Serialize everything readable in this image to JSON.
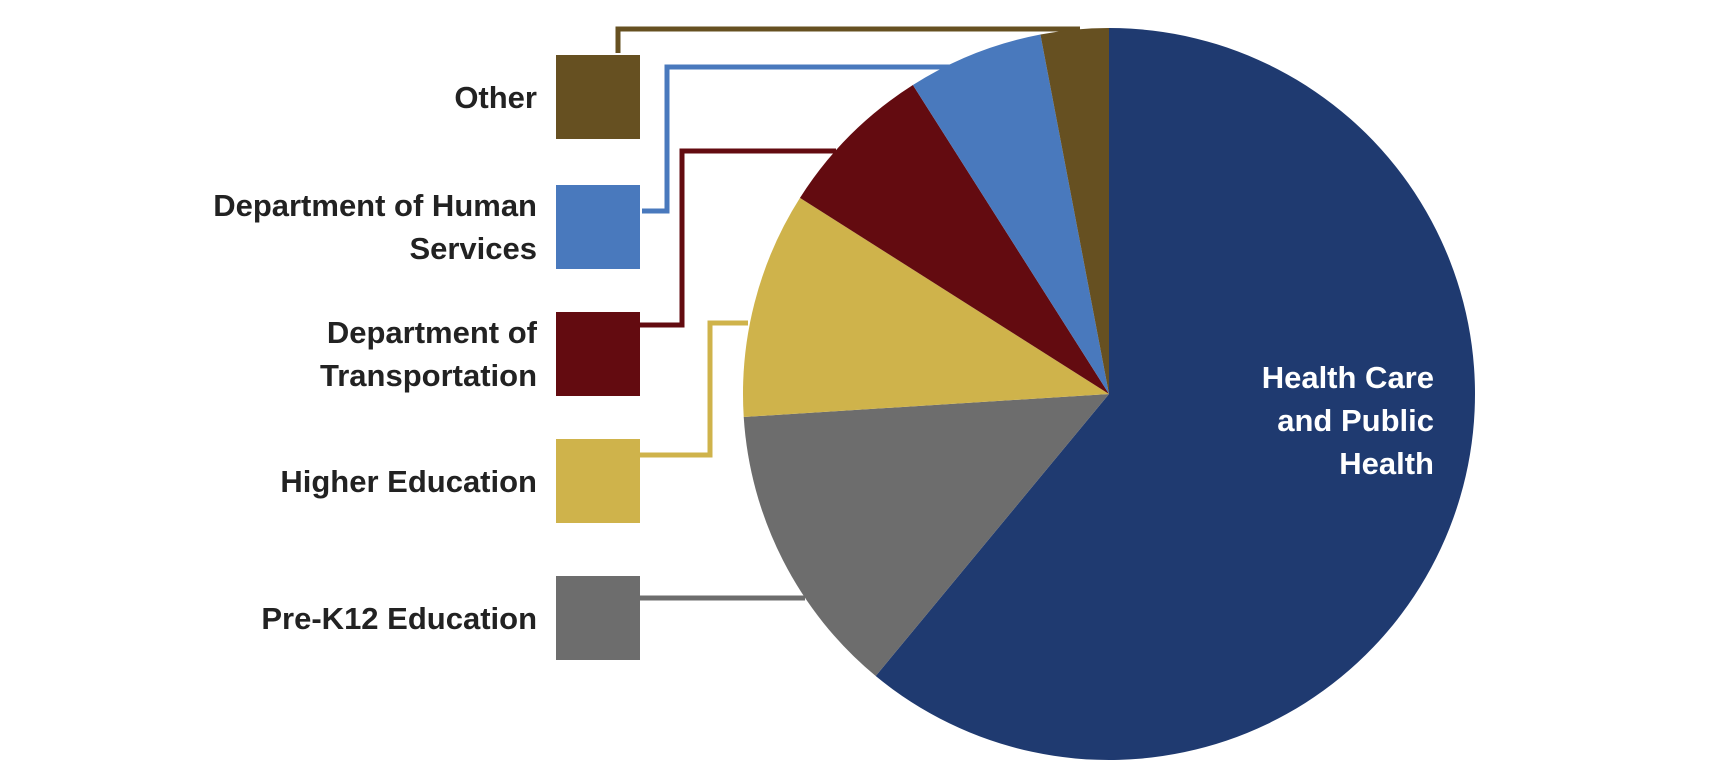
{
  "chart_data": {
    "type": "pie",
    "categories": [
      "Health Care and Public Health",
      "Pre-K12 Education",
      "Higher Education",
      "Department of Transportation",
      "Department of Human Services",
      "Other"
    ],
    "values": [
      61,
      13,
      10,
      7,
      6,
      3
    ],
    "colors": [
      "#1f3a70",
      "#6d6d6d",
      "#cfb34b",
      "#630b10",
      "#4979bd",
      "#665021"
    ]
  }
}
